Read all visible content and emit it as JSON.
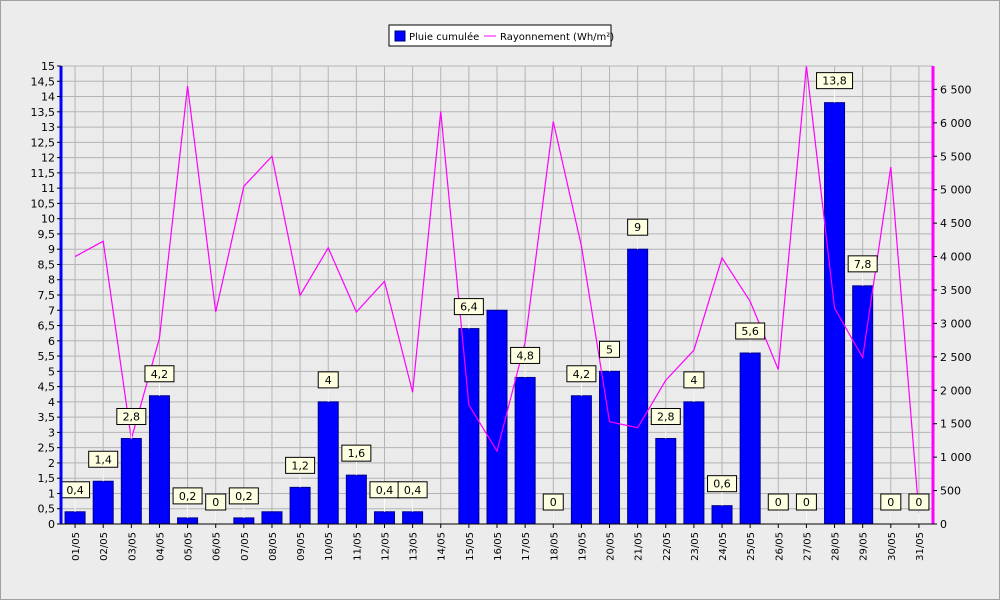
{
  "chart_data": {
    "type": "bar",
    "categories": [
      "01/05",
      "02/05",
      "03/05",
      "04/05",
      "05/05",
      "06/05",
      "07/05",
      "08/05",
      "09/05",
      "10/05",
      "11/05",
      "12/05",
      "13/05",
      "14/05",
      "15/05",
      "16/05",
      "17/05",
      "18/05",
      "19/05",
      "20/05",
      "21/05",
      "22/05",
      "23/05",
      "24/05",
      "25/05",
      "26/05",
      "27/05",
      "28/05",
      "29/05",
      "30/05",
      "31/05"
    ],
    "series": [
      {
        "name": "Pluie cumulée",
        "type": "bar",
        "axis": "left",
        "color": "#0000ff",
        "values": [
          0.4,
          1.4,
          2.8,
          4.2,
          0.2,
          0,
          0.2,
          0.4,
          1.2,
          4,
          1.6,
          0.4,
          0.4,
          0,
          6.4,
          7,
          4.8,
          0,
          4.2,
          5,
          9,
          2.8,
          4,
          0.6,
          5.6,
          0,
          0,
          13.8,
          7.8,
          0,
          0
        ],
        "data_labels": [
          "0,4",
          "1,4",
          "2,8",
          "4,2",
          "0,2",
          "0",
          "0,2",
          "",
          "1,2",
          "4",
          "1,6",
          "0,4",
          "0,4",
          "",
          "6,4",
          "",
          "4,8",
          "0",
          "4,2",
          "5",
          "9",
          "2,8",
          "4",
          "0,6",
          "5,6",
          "0",
          "0",
          "13,8",
          "7,8",
          "0",
          "0"
        ]
      },
      {
        "name": "Rayonnement (Wh/m²)",
        "type": "line",
        "axis": "right",
        "color": "#ff00ff",
        "values": [
          4000,
          4230,
          1270,
          2780,
          6550,
          3170,
          5050,
          5500,
          3420,
          4130,
          3170,
          3630,
          1970,
          6170,
          1780,
          1090,
          2720,
          6020,
          4160,
          1530,
          1440,
          2150,
          2600,
          3980,
          3330,
          2310,
          6850,
          3230,
          2490,
          5340,
          150
        ]
      }
    ],
    "left_axis": {
      "ylim": [
        0,
        15
      ],
      "ticks": [
        "0",
        "0,5",
        "1",
        "1,5",
        "2",
        "2,5",
        "3",
        "3,5",
        "4",
        "4,5",
        "5",
        "5,5",
        "6",
        "6,5",
        "7",
        "7,5",
        "8",
        "8,5",
        "9",
        "9,5",
        "10",
        "10,5",
        "11",
        "11,5",
        "12",
        "12,5",
        "13",
        "13,5",
        "14",
        "14,5",
        "15"
      ]
    },
    "right_axis": {
      "ylim": [
        0,
        6850
      ],
      "ticks": [
        "0",
        "500",
        "1 000",
        "1 500",
        "2 000",
        "2 500",
        "3 000",
        "3 500",
        "4 000",
        "4 500",
        "5 000",
        "5 500",
        "6 000",
        "6 500"
      ]
    },
    "grid": true,
    "legend": "top-center"
  }
}
